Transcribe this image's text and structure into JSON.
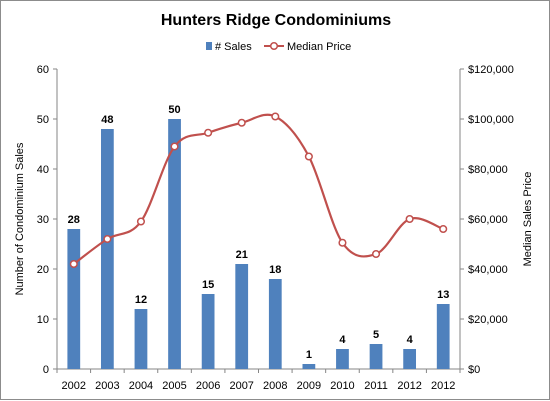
{
  "chart_data": {
    "type": "bar",
    "title": "Hunters Ridge Condominiums",
    "categories": [
      "2002",
      "2003",
      "2004",
      "2005",
      "2006",
      "2007",
      "2008",
      "2009",
      "2010",
      "2011",
      "2012",
      "2012"
    ],
    "series": [
      {
        "name": "# Sales",
        "type": "bar",
        "axis": "left",
        "color": "#4f81bd",
        "values": [
          28,
          48,
          12,
          50,
          15,
          21,
          18,
          1,
          4,
          5,
          4,
          13
        ],
        "labels": [
          "28",
          "48",
          "12",
          "50",
          "15",
          "21",
          "18",
          "1",
          "4",
          "5",
          "4",
          "13"
        ]
      },
      {
        "name": "Median Price",
        "type": "line",
        "smooth": true,
        "markers": "circle",
        "axis": "right",
        "color": "#c0504d",
        "values": [
          42000,
          52000,
          59000,
          89000,
          94500,
          98500,
          101000,
          85000,
          50500,
          46000,
          60000,
          56000
        ]
      }
    ],
    "ylabel": "Number of Condominium Sales",
    "y2label": "Median Sales Price",
    "ylim": [
      0,
      60
    ],
    "y2lim": [
      0,
      120000
    ],
    "yticks": [
      "0",
      "10",
      "20",
      "30",
      "40",
      "50",
      "60"
    ],
    "y2ticks": [
      "$0",
      "$20,000",
      "$40,000",
      "$60,000",
      "$80,000",
      "$100,000",
      "$120,000"
    ],
    "grid": false,
    "legend_position": "top"
  }
}
